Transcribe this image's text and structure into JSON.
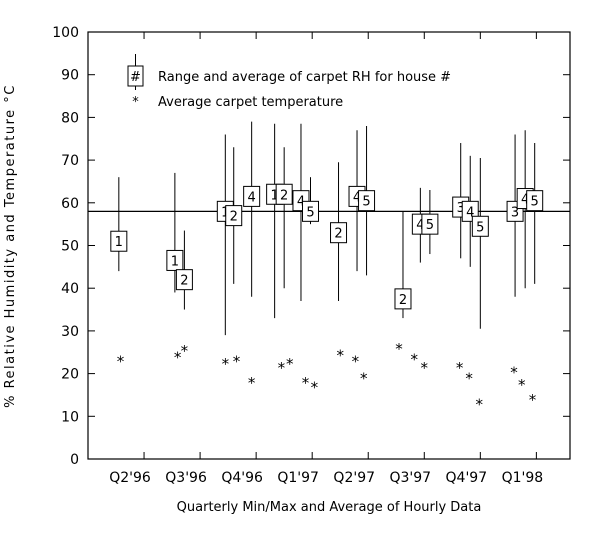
{
  "chart_data": {
    "type": "scatter",
    "title": "",
    "xlabel": "Quarterly Min/Max and Average of Hourly Data",
    "ylabel": "% Relative Humidity and Temperature °C",
    "ylim": [
      0,
      100
    ],
    "yticks": [
      0,
      10,
      20,
      30,
      40,
      50,
      60,
      70,
      80,
      90,
      100
    ],
    "x_categories": [
      "Q2'96",
      "Q3'96",
      "Q4'96",
      "Q1'97",
      "Q2'97",
      "Q3'97",
      "Q4'97",
      "Q1'98"
    ],
    "xlim": [
      0,
      8.6
    ],
    "reference_line_y": 58,
    "legend": {
      "placement": "top-left",
      "box_symbol": "#",
      "range_label": "Range and average of carpet RH for house #",
      "temp_symbol": "*",
      "temp_label": "Average carpet temperature"
    },
    "series": [
      {
        "name": "Range and average of carpet RH for house #",
        "points": [
          {
            "x": 0.55,
            "house": "1",
            "min": 44,
            "max": 66,
            "avg": 51
          },
          {
            "x": 1.55,
            "house": "1",
            "min": 39,
            "max": 67,
            "avg": 46.5
          },
          {
            "x": 1.72,
            "house": "2",
            "min": 35,
            "max": 53.5,
            "avg": 42
          },
          {
            "x": 2.45,
            "house": "1",
            "min": 29,
            "max": 76,
            "avg": 58
          },
          {
            "x": 2.6,
            "house": "2",
            "min": 41,
            "max": 73,
            "avg": 57
          },
          {
            "x": 2.92,
            "house": "4",
            "min": 38,
            "max": 79,
            "avg": 61.5
          },
          {
            "x": 3.33,
            "house": "1",
            "min": 33,
            "max": 78.5,
            "avg": 62
          },
          {
            "x": 3.5,
            "house": "2",
            "min": 40,
            "max": 73,
            "avg": 62
          },
          {
            "x": 3.8,
            "house": "4",
            "min": 37,
            "max": 78.5,
            "avg": 60.5
          },
          {
            "x": 3.97,
            "house": "5",
            "min": 55,
            "max": 66,
            "avg": 58
          },
          {
            "x": 4.47,
            "house": "2",
            "min": 37,
            "max": 69.5,
            "avg": 53
          },
          {
            "x": 4.8,
            "house": "4",
            "min": 44,
            "max": 77,
            "avg": 61.5
          },
          {
            "x": 4.97,
            "house": "5",
            "min": 43,
            "max": 78,
            "avg": 60.5
          },
          {
            "x": 5.62,
            "house": "2",
            "min": 33,
            "max": 58,
            "avg": 37.5
          },
          {
            "x": 5.93,
            "house": "4",
            "min": 46,
            "max": 63.5,
            "avg": 55
          },
          {
            "x": 6.1,
            "house": "5",
            "min": 48,
            "max": 63,
            "avg": 55
          },
          {
            "x": 6.65,
            "house": "3",
            "min": 47,
            "max": 74,
            "avg": 59
          },
          {
            "x": 6.82,
            "house": "4",
            "min": 45,
            "max": 71,
            "avg": 58
          },
          {
            "x": 7.0,
            "house": "5",
            "min": 30.5,
            "max": 70.5,
            "avg": 54.5
          },
          {
            "x": 7.62,
            "house": "3",
            "min": 38,
            "max": 76,
            "avg": 58
          },
          {
            "x": 7.8,
            "house": "4",
            "min": 40,
            "max": 77,
            "avg": 61
          },
          {
            "x": 7.97,
            "house": "5",
            "min": 41,
            "max": 74,
            "avg": 60.5
          }
        ]
      },
      {
        "name": "Average carpet temperature",
        "points": [
          {
            "x": 0.58,
            "y": 23.5
          },
          {
            "x": 1.6,
            "y": 24.5
          },
          {
            "x": 1.72,
            "y": 26
          },
          {
            "x": 2.45,
            "y": 23
          },
          {
            "x": 2.65,
            "y": 23.5
          },
          {
            "x": 2.92,
            "y": 18.5
          },
          {
            "x": 3.45,
            "y": 22
          },
          {
            "x": 3.6,
            "y": 23
          },
          {
            "x": 3.88,
            "y": 18.5
          },
          {
            "x": 4.04,
            "y": 17.5
          },
          {
            "x": 4.5,
            "y": 25
          },
          {
            "x": 4.77,
            "y": 23.5
          },
          {
            "x": 4.92,
            "y": 19.5
          },
          {
            "x": 5.55,
            "y": 26.5
          },
          {
            "x": 5.82,
            "y": 24
          },
          {
            "x": 6.0,
            "y": 22
          },
          {
            "x": 6.63,
            "y": 22
          },
          {
            "x": 6.8,
            "y": 19.5
          },
          {
            "x": 6.98,
            "y": 13.5
          },
          {
            "x": 7.6,
            "y": 21
          },
          {
            "x": 7.74,
            "y": 18
          },
          {
            "x": 7.93,
            "y": 14.5
          }
        ]
      }
    ]
  }
}
